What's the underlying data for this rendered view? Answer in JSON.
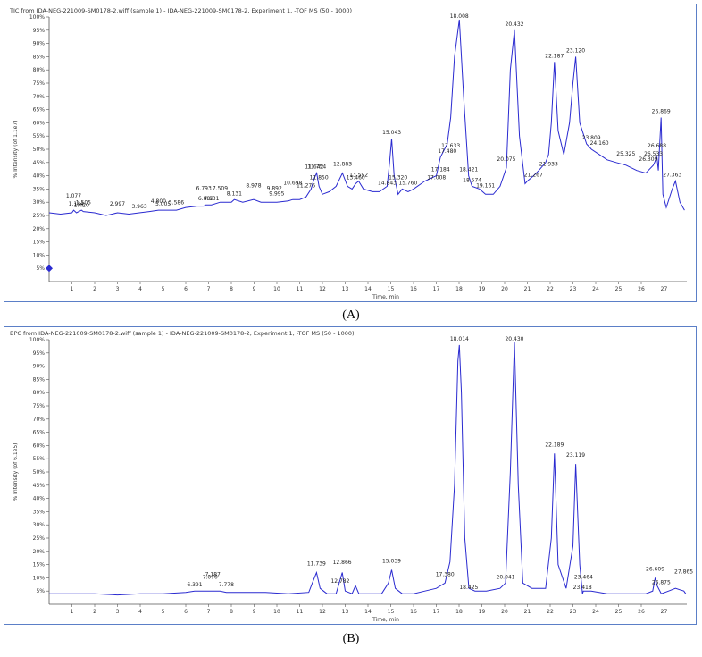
{
  "chart_data": [
    {
      "type": "line",
      "panel_label": "(A)",
      "title": "TIC from IDA-NEG-221009-SM0178-2.wiff (sample 1) - IDA-NEG-221009-SM0178-2, Experiment 1, -TOF MS (50 - 1000)",
      "xlabel": "Time, min",
      "ylabel": "% Intensity (of 1.1e7)",
      "xlim": [
        0,
        28
      ],
      "ylim": [
        0,
        100
      ],
      "x_ticks": [
        1,
        2,
        3,
        4,
        5,
        6,
        7,
        8,
        9,
        10,
        11,
        12,
        13,
        14,
        15,
        16,
        17,
        18,
        19,
        20,
        21,
        22,
        23,
        24,
        25,
        26,
        27
      ],
      "y_ticks": [
        5,
        10,
        15,
        20,
        25,
        30,
        35,
        40,
        45,
        50,
        55,
        60,
        65,
        70,
        75,
        80,
        85,
        90,
        95,
        100
      ],
      "color": "#2a2ad0",
      "series": [
        {
          "x": [
            0,
            0.5,
            1.0,
            1.08,
            1.2,
            1.42,
            1.5,
            2.0,
            2.5,
            3.0,
            3.5,
            3.96,
            4.4,
            4.8,
            5.0,
            5.59,
            6.0,
            6.5,
            6.79,
            6.88,
            7.13,
            7.51,
            8.0,
            8.13,
            8.5,
            8.98,
            9.3,
            9.89,
            10.0,
            10.5,
            10.7,
            11.0,
            11.28,
            11.5,
            11.64,
            11.75,
            11.85,
            12.0,
            12.3,
            12.6,
            12.88,
            13.1,
            13.3,
            13.46,
            13.59,
            13.8,
            14.2,
            14.5,
            14.84,
            14.95,
            15.04,
            15.15,
            15.32,
            15.5,
            15.76,
            16.0,
            16.5,
            17.0,
            17.18,
            17.48,
            17.63,
            17.8,
            18.01,
            18.2,
            18.42,
            18.57,
            18.9,
            19.16,
            19.5,
            19.8,
            20.08,
            20.25,
            20.43,
            20.65,
            20.9,
            21.0,
            21.27,
            21.5,
            21.8,
            21.93,
            22.05,
            22.19,
            22.35,
            22.6,
            22.85,
            23.0,
            23.12,
            23.3,
            23.6,
            23.81,
            24.16,
            24.5,
            24.9,
            25.33,
            25.8,
            26.2,
            26.31,
            26.53,
            26.69,
            26.75,
            26.87,
            26.95,
            27.1,
            27.36,
            27.5,
            27.7,
            27.9
          ],
          "y": [
            26,
            25.5,
            26,
            27,
            26,
            27,
            26.5,
            26,
            25,
            26,
            25.5,
            26,
            26.5,
            27,
            27,
            27,
            28,
            28.5,
            28.5,
            29,
            29,
            30,
            30,
            31,
            30,
            31,
            30,
            30,
            30,
            30.5,
            31,
            31,
            32,
            35,
            39,
            41,
            36,
            33,
            34,
            36,
            41,
            36,
            35,
            37,
            38,
            35,
            34,
            34,
            36,
            45,
            54,
            40,
            33,
            35,
            34,
            35,
            38,
            40,
            47,
            52,
            62,
            85,
            99,
            70,
            40,
            36,
            35,
            33,
            33,
            36,
            43,
            80,
            95,
            55,
            37,
            38,
            40,
            42,
            45,
            48,
            60,
            83,
            57,
            48,
            60,
            75,
            85,
            60,
            52,
            50,
            48,
            46,
            45,
            44,
            42,
            41,
            42,
            44,
            47,
            42,
            62,
            33,
            28,
            35,
            38,
            30,
            27
          ]
        }
      ],
      "peak_labels": [
        {
          "x": 1.184,
          "y": 28,
          "text": "1.184"
        },
        {
          "x": 1.077,
          "y": 31,
          "text": "1.077"
        },
        {
          "x": 1.42,
          "y": 27.5,
          "text": "1.420"
        },
        {
          "x": 1.505,
          "y": 28.5,
          "text": "1.505"
        },
        {
          "x": 2.997,
          "y": 28,
          "text": "2.997"
        },
        {
          "x": 3.963,
          "y": 27,
          "text": "3.963"
        },
        {
          "x": 4.8,
          "y": 29,
          "text": "4.800"
        },
        {
          "x": 5.005,
          "y": 28,
          "text": "5.005"
        },
        {
          "x": 5.586,
          "y": 28.5,
          "text": "5.586"
        },
        {
          "x": 6.793,
          "y": 34,
          "text": "6.793"
        },
        {
          "x": 6.882,
          "y": 30,
          "text": "6.882"
        },
        {
          "x": 7.131,
          "y": 30,
          "text": "7.131"
        },
        {
          "x": 7.509,
          "y": 34,
          "text": "7.509"
        },
        {
          "x": 8.131,
          "y": 32,
          "text": "8.131"
        },
        {
          "x": 8.978,
          "y": 35,
          "text": "8.978"
        },
        {
          "x": 9.892,
          "y": 34,
          "text": "9.892"
        },
        {
          "x": 9.995,
          "y": 32,
          "text": "9.995"
        },
        {
          "x": 10.698,
          "y": 36,
          "text": "10.698"
        },
        {
          "x": 11.276,
          "y": 35,
          "text": "11.276"
        },
        {
          "x": 11.642,
          "y": 42,
          "text": "11.642"
        },
        {
          "x": 11.754,
          "y": 42,
          "text": "11.754"
        },
        {
          "x": 11.85,
          "y": 38,
          "text": "11.850"
        },
        {
          "x": 12.883,
          "y": 43,
          "text": "12.883"
        },
        {
          "x": 13.46,
          "y": 38,
          "text": "13.460"
        },
        {
          "x": 13.592,
          "y": 39,
          "text": "13.592"
        },
        {
          "x": 14.843,
          "y": 36,
          "text": "14.843"
        },
        {
          "x": 15.043,
          "y": 55,
          "text": "15.043"
        },
        {
          "x": 15.32,
          "y": 38,
          "text": "15.320"
        },
        {
          "x": 15.76,
          "y": 36,
          "text": "15.760"
        },
        {
          "x": 17.008,
          "y": 38,
          "text": "17.008"
        },
        {
          "x": 17.184,
          "y": 41,
          "text": "17.184"
        },
        {
          "x": 17.48,
          "y": 48,
          "text": "17.480"
        },
        {
          "x": 17.633,
          "y": 50,
          "text": "17.633"
        },
        {
          "x": 18.008,
          "y": 99,
          "text": "18.008"
        },
        {
          "x": 18.421,
          "y": 41,
          "text": "18.421"
        },
        {
          "x": 18.574,
          "y": 37,
          "text": "18.574"
        },
        {
          "x": 19.161,
          "y": 35,
          "text": "19.161"
        },
        {
          "x": 20.075,
          "y": 45,
          "text": "20.075"
        },
        {
          "x": 20.432,
          "y": 96,
          "text": "20.432"
        },
        {
          "x": 21.267,
          "y": 39,
          "text": "21.267"
        },
        {
          "x": 21.933,
          "y": 43,
          "text": "21.933"
        },
        {
          "x": 22.187,
          "y": 84,
          "text": "22.187"
        },
        {
          "x": 23.12,
          "y": 86,
          "text": "23.120"
        },
        {
          "x": 23.809,
          "y": 53,
          "text": "23.809"
        },
        {
          "x": 24.16,
          "y": 51,
          "text": "24.160"
        },
        {
          "x": 25.325,
          "y": 47,
          "text": "25.325"
        },
        {
          "x": 26.309,
          "y": 45,
          "text": "26.309"
        },
        {
          "x": 26.533,
          "y": 47,
          "text": "26.533"
        },
        {
          "x": 26.688,
          "y": 50,
          "text": "26.688"
        },
        {
          "x": 26.869,
          "y": 63,
          "text": "26.869"
        },
        {
          "x": 27.363,
          "y": 39,
          "text": "27.363"
        }
      ]
    },
    {
      "type": "line",
      "panel_label": "(B)",
      "title": "BPC from IDA-NEG-221009-SM0178-2.wiff (sample 1) - IDA-NEG-221009-SM0178-2, Experiment 1, -TOF MS (50 - 1000)",
      "xlabel": "Time, min",
      "ylabel": "% Intensity (of 6.1e5)",
      "xlim": [
        0,
        28
      ],
      "ylim": [
        0,
        100
      ],
      "x_ticks": [
        1,
        2,
        3,
        4,
        5,
        6,
        7,
        8,
        9,
        10,
        11,
        12,
        13,
        14,
        15,
        16,
        17,
        18,
        19,
        20,
        21,
        22,
        23,
        24,
        25,
        26,
        27
      ],
      "y_ticks": [
        5,
        10,
        15,
        20,
        25,
        30,
        35,
        40,
        45,
        50,
        55,
        60,
        65,
        70,
        75,
        80,
        85,
        90,
        95,
        100
      ],
      "color": "#2a2ad0",
      "series": [
        {
          "x": [
            0,
            1.0,
            2.0,
            3.0,
            4.0,
            5.0,
            6.0,
            6.39,
            7.07,
            7.19,
            7.5,
            7.78,
            8.5,
            9.5,
            10.5,
            11.4,
            11.6,
            11.74,
            11.9,
            12.2,
            12.6,
            12.87,
            13.0,
            13.3,
            13.45,
            13.6,
            14.0,
            14.6,
            14.9,
            15.04,
            15.2,
            15.5,
            16.0,
            16.5,
            17.0,
            17.38,
            17.6,
            17.8,
            17.95,
            18.01,
            18.1,
            18.25,
            18.43,
            18.7,
            19.2,
            19.8,
            20.04,
            20.25,
            20.43,
            20.6,
            20.8,
            21.2,
            21.8,
            22.05,
            22.19,
            22.35,
            22.7,
            23.0,
            23.12,
            23.3,
            23.42,
            23.46,
            23.8,
            24.5,
            25.5,
            26.2,
            26.5,
            26.61,
            26.7,
            26.88,
            27.2,
            27.5,
            27.87,
            27.95
          ],
          "y": [
            4,
            4,
            4,
            3.5,
            4,
            4,
            4.5,
            5,
            5,
            5,
            5,
            4.5,
            4.5,
            4.5,
            4,
            4.5,
            9,
            12,
            6,
            4,
            4,
            12,
            5,
            4,
            7,
            4,
            4,
            4,
            8,
            13,
            6,
            4,
            4,
            5,
            6,
            8,
            16,
            45,
            92,
            98,
            80,
            25,
            6,
            5,
            5,
            6,
            8,
            50,
            99,
            45,
            8,
            6,
            6,
            25,
            57,
            15,
            6,
            22,
            53,
            15,
            4,
            5,
            5,
            4,
            4,
            4,
            5,
            10,
            7,
            4,
            5,
            6,
            5,
            4
          ]
        }
      ],
      "peak_labels": [
        {
          "x": 6.391,
          "y": 6,
          "text": "6.391"
        },
        {
          "x": 7.07,
          "y": 9,
          "text": "7.070"
        },
        {
          "x": 7.187,
          "y": 10,
          "text": "7.187"
        },
        {
          "x": 7.778,
          "y": 6,
          "text": "7.778"
        },
        {
          "x": 11.739,
          "y": 14,
          "text": "11.739"
        },
        {
          "x": 12.866,
          "y": 14.5,
          "text": "12.866"
        },
        {
          "x": 12.782,
          "y": 7.5,
          "text": "12.782"
        },
        {
          "x": 15.039,
          "y": 15,
          "text": "15.039"
        },
        {
          "x": 17.38,
          "y": 10,
          "text": "17.380"
        },
        {
          "x": 18.014,
          "y": 99,
          "text": "18.014"
        },
        {
          "x": 18.425,
          "y": 5,
          "text": "18.425"
        },
        {
          "x": 20.041,
          "y": 9,
          "text": "20.041"
        },
        {
          "x": 20.43,
          "y": 99,
          "text": "20.430"
        },
        {
          "x": 22.189,
          "y": 59,
          "text": "22.189"
        },
        {
          "x": 23.119,
          "y": 55,
          "text": "23.119"
        },
        {
          "x": 23.464,
          "y": 9,
          "text": "23.464"
        },
        {
          "x": 23.418,
          "y": 5,
          "text": "23.418"
        },
        {
          "x": 26.609,
          "y": 12,
          "text": "26.609"
        },
        {
          "x": 26.875,
          "y": 7,
          "text": "26.875"
        },
        {
          "x": 27.865,
          "y": 11,
          "text": "27.865"
        }
      ]
    }
  ]
}
